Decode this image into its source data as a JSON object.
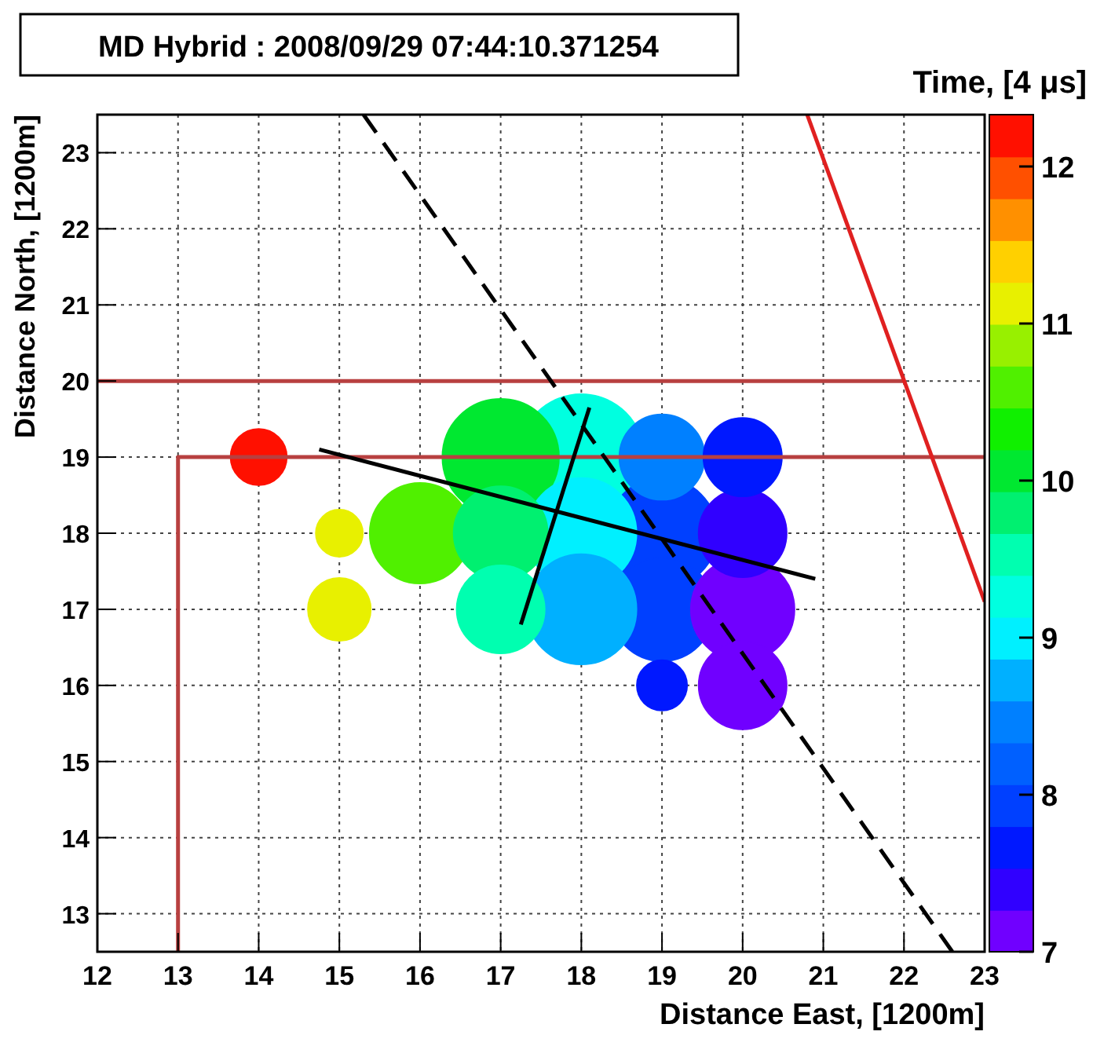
{
  "chart_data": {
    "type": "bubble",
    "title": "MD Hybrid : 2008/09/29 07:44:10.371254",
    "xlabel": "Distance East,  [1200m]",
    "ylabel": "Distance North,  [1200m]",
    "clabel": "Time,  [4 μs]",
    "xlim": [
      12,
      23
    ],
    "xticks": [
      12,
      13,
      14,
      15,
      16,
      17,
      18,
      19,
      20,
      21,
      22,
      23
    ],
    "ylim": [
      12.5,
      23.5
    ],
    "yticks": [
      13,
      14,
      15,
      16,
      17,
      18,
      19,
      20,
      21,
      22,
      23
    ],
    "clim": [
      7,
      12.33
    ],
    "cticks": [
      7,
      8,
      9,
      10,
      11,
      12
    ],
    "grid": true,
    "series": [
      {
        "x": [
          18,
          19,
          17,
          18,
          19,
          16,
          17,
          18,
          19,
          20,
          20,
          20,
          20,
          17,
          19,
          15,
          15,
          14
        ],
        "values": [
          19,
          18,
          19,
          18,
          17,
          18,
          18,
          17,
          19,
          17,
          18,
          19,
          16,
          17,
          16,
          18,
          17,
          19
        ],
        "sizes": [
          1,
          0.77,
          0.86,
          0.77,
          0.68,
          0.64,
          0.56,
          0.77,
          0.46,
          0.68,
          0.49,
          0.39,
          0.49,
          0.49,
          0.16,
          0.14,
          0.25,
          0.2
        ],
        "colors": [
          "#00ffe0",
          "#0040ff",
          "#00e830",
          "#00f0ff",
          "#0040ff",
          "#50f000",
          "#00f070",
          "#00b0ff",
          "#0080ff",
          "#7000ff",
          "#3000ff",
          "#0018ff",
          "#7000ff",
          "#00ffb0",
          "#0018ff",
          "#e8f000",
          "#e8f000",
          "#ff1000"
        ],
        "cvalues": [
          9.3,
          8.0,
          10.0,
          9.0,
          7.9,
          10.5,
          9.9,
          8.6,
          8.5,
          7.2,
          7.4,
          7.6,
          7.1,
          9.6,
          7.7,
          11.0,
          11.0,
          12.2
        ]
      },
      {
        "type": "line",
        "x": [
          12,
          22
        ],
        "values": [
          20,
          20
        ],
        "color": "#b84040",
        "line_style": "solid"
      },
      {
        "type": "line",
        "x": [
          13,
          13,
          23
        ],
        "values": [
          12.5,
          19,
          19
        ],
        "color": "#b84040",
        "line_style": "solid"
      },
      {
        "type": "line",
        "x": [
          20.8,
          23
        ],
        "values": [
          23.5,
          17.1
        ],
        "color": "#e02020",
        "line_style": "solid"
      },
      {
        "type": "line",
        "x": [
          15.3,
          22.6
        ],
        "values": [
          23.5,
          12.5
        ],
        "color": "#000000",
        "line_style": "dashed"
      },
      {
        "type": "line",
        "x": [
          20.9,
          14.75
        ],
        "values": [
          17.4,
          19.1
        ],
        "color": "#000000",
        "line_style": "solid"
      },
      {
        "type": "line",
        "x": [
          17.25,
          18.1
        ],
        "values": [
          16.8,
          19.65
        ],
        "color": "#000000",
        "line_style": "solid"
      }
    ]
  }
}
